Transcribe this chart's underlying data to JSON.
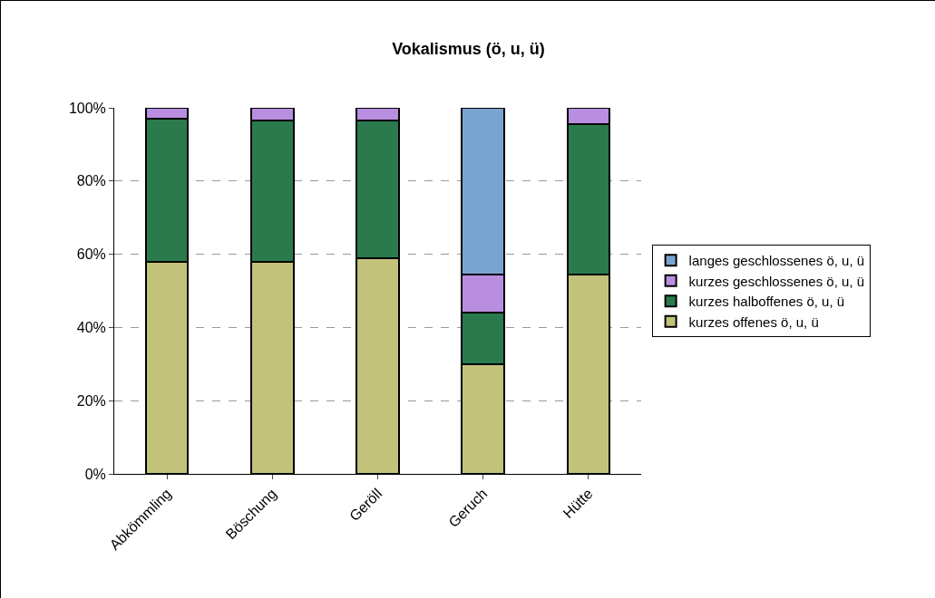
{
  "chart_data": {
    "type": "bar",
    "title": "Vokalismus (ö, u, ü)",
    "stacked": true,
    "categories": [
      "Abkömmling",
      "Böschung",
      "Geröll",
      "Geruch",
      "Hütte"
    ],
    "series": [
      {
        "name": "kurzes offenes ö, u, ü",
        "color": "#c2c27a",
        "values": [
          58,
          58,
          59,
          30,
          54.5
        ]
      },
      {
        "name": "kurzes halboffenes ö, u, ü",
        "color": "#2a7a4e",
        "values": [
          39,
          38.5,
          37.5,
          14,
          41
        ]
      },
      {
        "name": "kurzes geschlossenes ö, u, ü",
        "color": "#b98ee0",
        "values": [
          3,
          3.5,
          3.5,
          10.5,
          4.5
        ]
      },
      {
        "name": "langes geschlossenes ö, u, ü",
        "color": "#7aa4d0",
        "values": [
          null,
          null,
          null,
          45.5,
          null
        ]
      }
    ],
    "ylim": [
      0,
      100
    ],
    "yticks": [
      {
        "value": 0,
        "label": "0%"
      },
      {
        "value": 20,
        "label": "20%"
      },
      {
        "value": 40,
        "label": "40%"
      },
      {
        "value": 60,
        "label": "60%"
      },
      {
        "value": 80,
        "label": "80%"
      },
      {
        "value": 100,
        "label": "100%"
      }
    ],
    "grid": "y",
    "legend": "right"
  }
}
